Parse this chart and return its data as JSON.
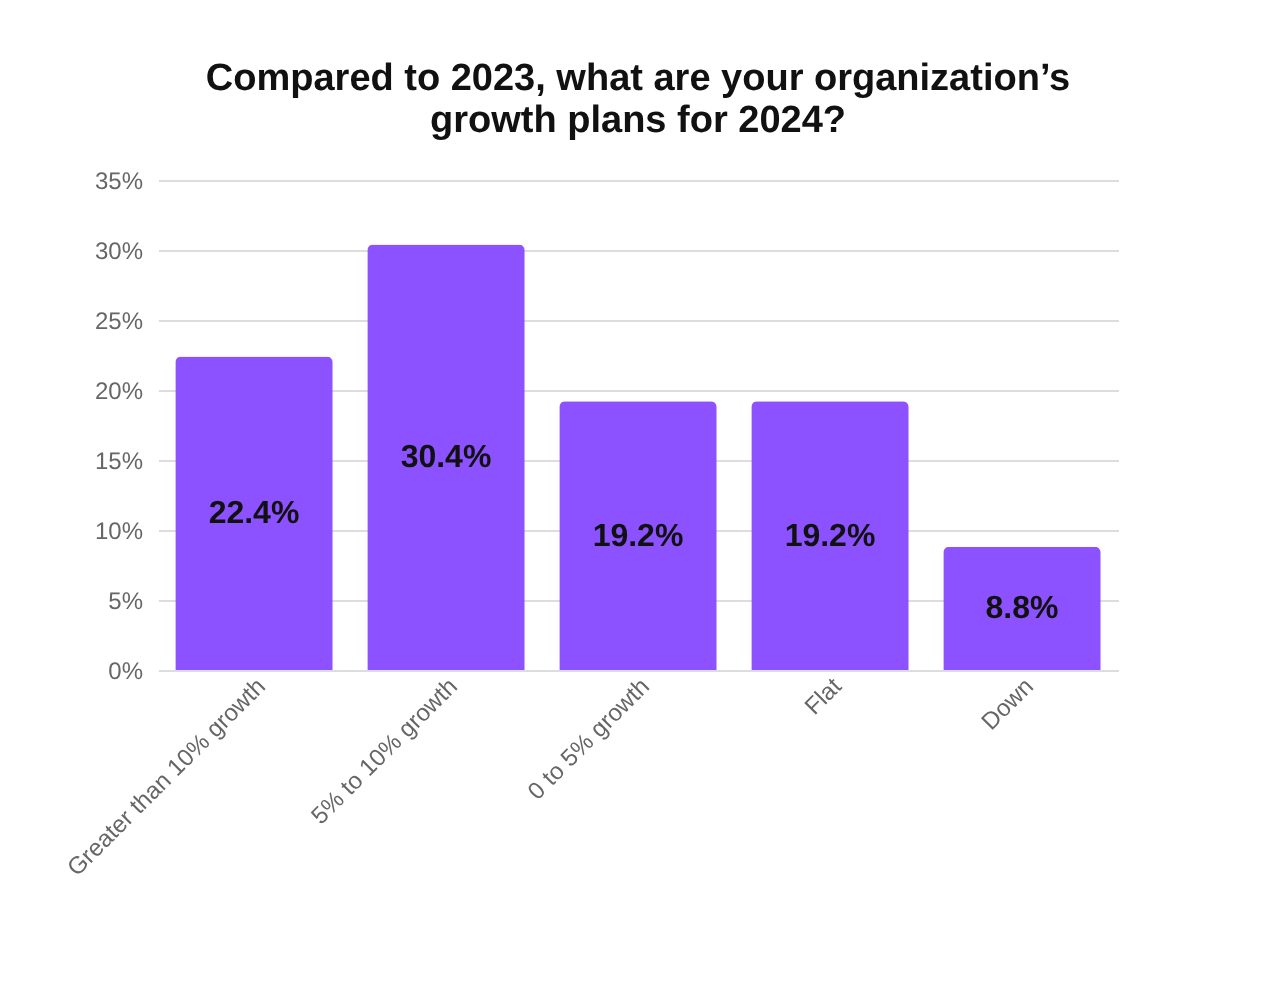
{
  "chart_data": {
    "type": "bar",
    "title": [
      "Compared to 2023, what are your organization’s",
      "growth plans for 2024?"
    ],
    "categories": [
      "Greater than 10% growth",
      "5% to 10% growth",
      "0 to 5% growth",
      "Flat",
      "Down"
    ],
    "values": [
      22.4,
      30.4,
      19.2,
      19.2,
      8.8
    ],
    "value_labels": [
      "22.4%",
      "30.4%",
      "19.2%",
      "19.2%",
      "8.8%"
    ],
    "color": "#8c52ff",
    "ylim": [
      0,
      35
    ],
    "yticks": [
      {
        "value": 0,
        "label": "0%"
      },
      {
        "value": 5,
        "label": "5%"
      },
      {
        "value": 10,
        "label": "10%"
      },
      {
        "value": 15,
        "label": "15%"
      },
      {
        "value": 20,
        "label": "20%"
      },
      {
        "value": 25,
        "label": "25%"
      },
      {
        "value": 30,
        "label": "30%"
      },
      {
        "value": 35,
        "label": "35%"
      }
    ],
    "grid": "y"
  }
}
